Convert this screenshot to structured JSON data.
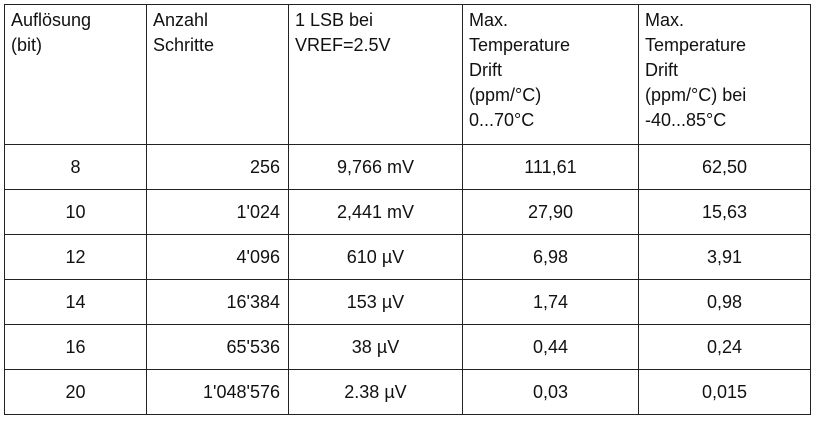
{
  "table": {
    "headers": [
      "Auflösung\n(bit)",
      "Anzahl\nSchritte",
      "1 LSB bei\nVREF=2.5V",
      "Max.\nTemperature\nDrift\n(ppm/°C)\n0...70°C",
      "Max.\nTemperature\nDrift\n(ppm/°C) bei\n-40...85°C"
    ],
    "rows": [
      [
        "8",
        "256",
        "9,766 mV",
        "111,61",
        "62,50"
      ],
      [
        "10",
        "1'024",
        "2,441 mV",
        "27,90",
        "15,63"
      ],
      [
        "12",
        "4'096",
        "610 µV",
        "6,98",
        "3,91"
      ],
      [
        "14",
        "16'384",
        "153 µV",
        "1,74",
        "0,98"
      ],
      [
        "16",
        "65'536",
        "38 µV",
        "0,44",
        "0,24"
      ],
      [
        "20",
        "1'048'576",
        "2.38 µV",
        "0,03",
        "0,015"
      ]
    ]
  }
}
